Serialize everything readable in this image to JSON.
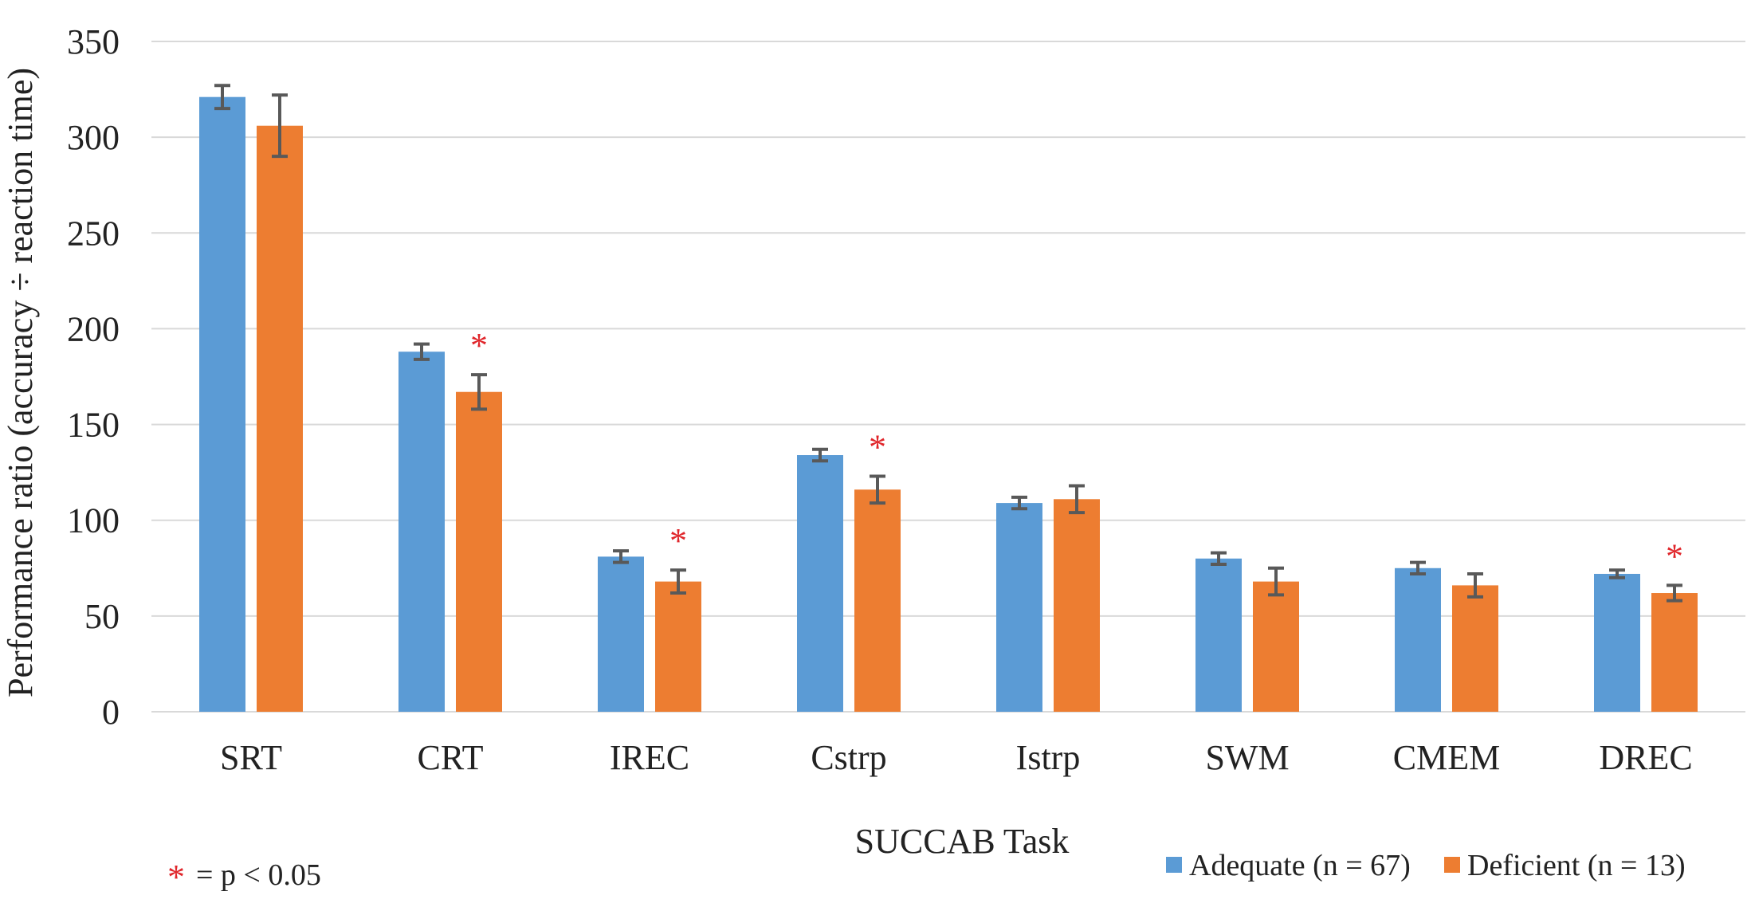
{
  "chart_data": {
    "type": "bar",
    "title": "",
    "xlabel": "SUCCAB Task",
    "ylabel": "Performance ratio (accuracy ÷ reaction time)",
    "ylim": [
      0,
      350
    ],
    "yticks": [
      0,
      50,
      100,
      150,
      200,
      250,
      300,
      350
    ],
    "grid": true,
    "legend_position": "bottom-right",
    "categories": [
      "SRT",
      "CRT",
      "IREC",
      "Cstrp",
      "Istrp",
      "SWM",
      "CMEM",
      "DREC"
    ],
    "series": [
      {
        "name": "Adequate (n = 67)",
        "color": "#5b9bd5",
        "values": [
          321,
          188,
          81,
          134,
          109,
          80,
          75,
          72
        ],
        "error": [
          6,
          4,
          3,
          3,
          3,
          3,
          3,
          2
        ]
      },
      {
        "name": "Deficient (n = 13)",
        "color": "#ed7d31",
        "values": [
          306,
          167,
          68,
          116,
          111,
          68,
          66,
          62
        ],
        "error": [
          16,
          9,
          6,
          7,
          7,
          7,
          6,
          4
        ]
      }
    ],
    "significant": [
      "CRT",
      "IREC",
      "Cstrp",
      "DREC"
    ],
    "significance_symbol": "*",
    "significance_note": "= p < 0.05",
    "significance_color": "#e0262b"
  }
}
